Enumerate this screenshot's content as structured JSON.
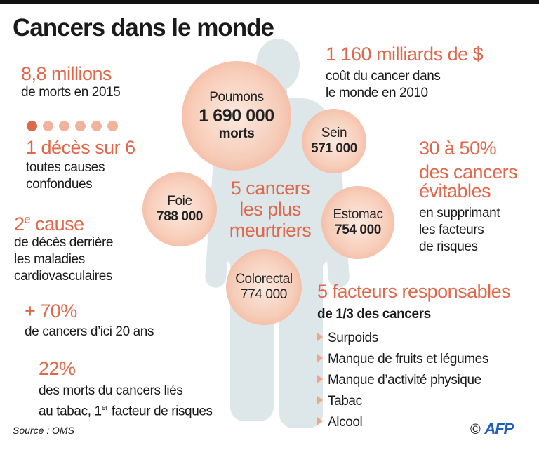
{
  "title": "Cancers dans le monde",
  "stats_left": {
    "deaths_value": "8,8 millions",
    "deaths_label": "de morts en 2015",
    "ratio_value": "1 décès sur 6",
    "ratio_label_1": "toutes causes",
    "ratio_label_2": "confondues",
    "ratio_dots_highlighted": 1,
    "ratio_dots_total": 6,
    "rank_number": "2",
    "rank_suffix": "e",
    "rank_word": "cause",
    "rank_label_1": "de décès derrière",
    "rank_label_2": "les maladies",
    "rank_label_3": "cardiovasculaires",
    "growth_value": "+ 70%",
    "growth_label": "de cancers d’ici 20 ans",
    "tobacco_value": "22%",
    "tobacco_label_1": "des morts du cancers liés",
    "tobacco_label_2a": "au tabac, 1",
    "tobacco_label_2sup": "er",
    "tobacco_label_2b": " facteur de risques"
  },
  "stats_right": {
    "cost_value": "1 160 milliards de $",
    "cost_label_1": "coût du cancer dans",
    "cost_label_2": "le monde en 2010",
    "avoidable_value": "30 à 50%",
    "avoidable_line_2": "des cancers",
    "avoidable_line_3": "évitables",
    "avoidable_label_1": "en supprimant",
    "avoidable_label_2": "les facteurs",
    "avoidable_label_3": "de risques"
  },
  "deadliest": {
    "heading_1": "5 cancers",
    "heading_2": "les plus",
    "heading_3": "meurtriers",
    "cancers": [
      {
        "name": "Poumons",
        "value": "1 690 000",
        "unit": "morts"
      },
      {
        "name": "Sein",
        "value": "571 000"
      },
      {
        "name": "Foie",
        "value": "788 000"
      },
      {
        "name": "Estomac",
        "value": "754 000"
      },
      {
        "name": "Colorectal",
        "value": "774 000"
      }
    ]
  },
  "factors": {
    "heading": "5 facteurs responsables",
    "subheading": "de 1/3 des cancers",
    "items": [
      "Surpoids",
      "Manque de fruits et légumes",
      "Manque d’activité physique",
      "Tabac",
      "Alcool"
    ]
  },
  "source": "Source : OMS",
  "credit": {
    "copyright": "©",
    "logo": "AFP"
  },
  "colors": {
    "accent": "#e0684a",
    "bubble": "#f2a98c",
    "silhouette": "#dde7ea",
    "dot_highlight": "#e0684a",
    "dot": "#f2b39c"
  }
}
